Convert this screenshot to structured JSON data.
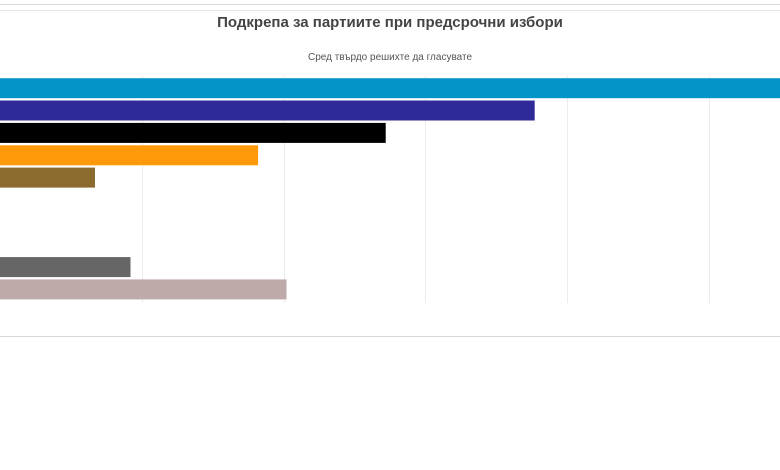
{
  "chart_data": {
    "type": "bar",
    "orientation": "horizontal",
    "title": "Подкрепа за партиите при предсрочни избори",
    "subtitle": "Сред твърдо решихте да гласувате",
    "xlabel": "",
    "ylabel": "",
    "grid": true,
    "categories": [
      "",
      "",
      "",
      "",
      "",
      "",
      "",
      "",
      "",
      ""
    ],
    "values": [
      55.6,
      37.7,
      27.2,
      18.2,
      6.7,
      0,
      0,
      0,
      9.2,
      20.2
    ],
    "colors": [
      "#0594c8",
      "#2f2a9a",
      "#000000",
      "#ff9a0a",
      "#8b6c2e",
      "#ffffff",
      "#ffffff",
      "#ffffff",
      "#666666",
      "#bfaaaa"
    ],
    "xlim": [
      0,
      55
    ]
  }
}
